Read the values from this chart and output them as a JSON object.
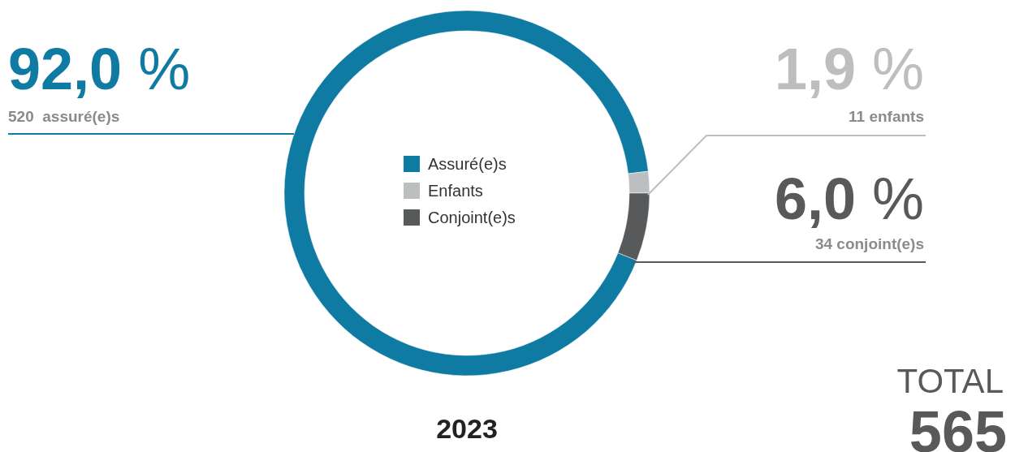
{
  "chart_data": {
    "type": "donut",
    "title": "2023",
    "categories": [
      "Assuré(e)s",
      "Enfants",
      "Conjoint(e)s"
    ],
    "values": [
      92.0,
      1.9,
      6.0
    ],
    "colors": [
      "#0f7ba3",
      "#bdbec0",
      "#58595b"
    ],
    "value_labels": [
      "92,0 %",
      "1,9 %",
      "6,0 %"
    ],
    "annotations": [
      "520  assuré(e)s",
      "11 enfants",
      "34 conjoint(e)s",
      "TOTAL",
      "565"
    ],
    "legend": "center"
  }
}
